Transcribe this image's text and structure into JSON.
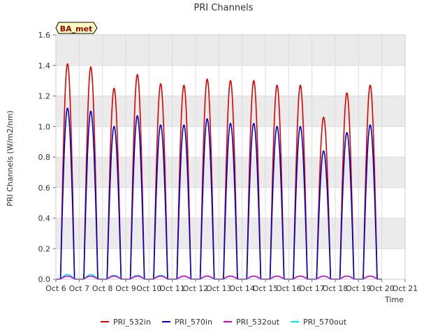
{
  "chart_data": {
    "type": "line",
    "title": "PRI Channels",
    "xlabel": "Time",
    "ylabel": "PRI Channels (W/m2/nm)",
    "badge": "BA_met",
    "xlim": [
      0,
      15
    ],
    "ylim": [
      0,
      1.6
    ],
    "x_ticks": [
      0,
      1,
      2,
      3,
      4,
      5,
      6,
      7,
      8,
      9,
      10,
      11,
      12,
      13,
      14,
      15
    ],
    "x_tick_labels": [
      "Oct 6",
      "Oct 7",
      "Oct 8",
      "Oct 9",
      "Oct 10",
      "Oct 11",
      "Oct 12",
      "Oct 13",
      "Oct 14",
      "Oct 15",
      "Oct 16",
      "Oct 17",
      "Oct 18",
      "Oct 19",
      "Oct 20",
      "Oct 21"
    ],
    "y_ticks": [
      0.0,
      0.2,
      0.4,
      0.6,
      0.8,
      1.0,
      1.2,
      1.4,
      1.6
    ],
    "y_tick_labels": [
      "0.0",
      "0.2",
      "0.4",
      "0.6",
      "0.8",
      "1.0",
      "1.2",
      "1.4",
      "1.6"
    ],
    "colors": {
      "PRI_532in": "#dd0000",
      "PRI_570in": "#0000cc",
      "PRI_532out": "#cc00cc",
      "PRI_570out": "#00e5e5",
      "band": "#ebebeb",
      "badge_fill": "#ffffc0",
      "badge_text": "#990000"
    },
    "days": [
      0,
      1,
      2,
      3,
      4,
      5,
      6,
      7,
      8,
      9,
      10,
      11,
      12,
      13
    ],
    "series": [
      {
        "name": "PRI_532in",
        "peaks": [
          1.41,
          1.39,
          1.25,
          1.34,
          1.28,
          1.27,
          1.31,
          1.3,
          1.3,
          1.27,
          1.27,
          1.06,
          1.22,
          1.27
        ]
      },
      {
        "name": "PRI_570in",
        "peaks": [
          1.12,
          1.1,
          1.0,
          1.07,
          1.01,
          1.01,
          1.05,
          1.02,
          1.02,
          1.0,
          1.0,
          0.84,
          0.96,
          1.01
        ]
      },
      {
        "name": "PRI_532out",
        "peaks": [
          0.02,
          0.02,
          0.02,
          0.02,
          0.02,
          0.02,
          0.02,
          0.02,
          0.02,
          0.02,
          0.02,
          0.02,
          0.02,
          0.02
        ]
      },
      {
        "name": "PRI_570out",
        "peaks": [
          0.03,
          0.03,
          0.025,
          0.025,
          0.025,
          0.02,
          0.02,
          0.02,
          0.02,
          0.02,
          0.02,
          0.02,
          0.02,
          0.02
        ]
      }
    ],
    "legend": [
      "PRI_532in",
      "PRI_570in",
      "PRI_532out",
      "PRI_570out"
    ]
  }
}
